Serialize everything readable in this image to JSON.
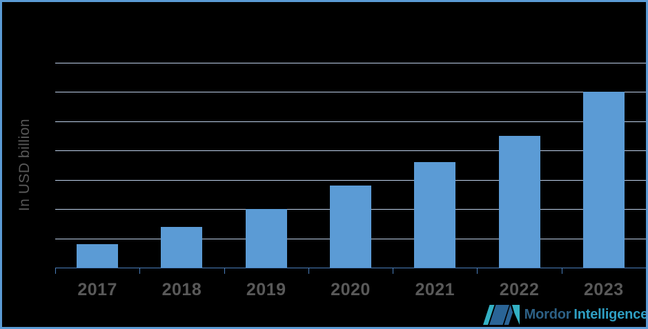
{
  "chart_data": {
    "type": "bar",
    "title": "",
    "categories": [
      "2017",
      "2018",
      "2019",
      "2020",
      "2021",
      "2022",
      "2023"
    ],
    "values": [
      0.4,
      0.7,
      1.0,
      1.4,
      1.8,
      2.25,
      3.0
    ],
    "xlabel": "",
    "ylabel": "In USD billion",
    "ylim": [
      0,
      3.5
    ],
    "gridline_step": 0.5,
    "grid": "horizontal",
    "legend_position": "none",
    "y_tick_labels_visible": false
  },
  "colors": {
    "bar": "#5B9BD5",
    "gridline": "#BDD0EA",
    "axis": "#4A7EBB",
    "frame_border": "#5B9BD5",
    "label_text": "#595959",
    "background": "#000000",
    "logo_navy": "#2A6496",
    "logo_teal": "#33B1C4",
    "brand_primary_color": "#2D6186",
    "brand_secondary_color": "#2F9FC3"
  },
  "logo": {
    "brand_primary": "Mordor",
    "brand_secondary": "Intelligence"
  }
}
